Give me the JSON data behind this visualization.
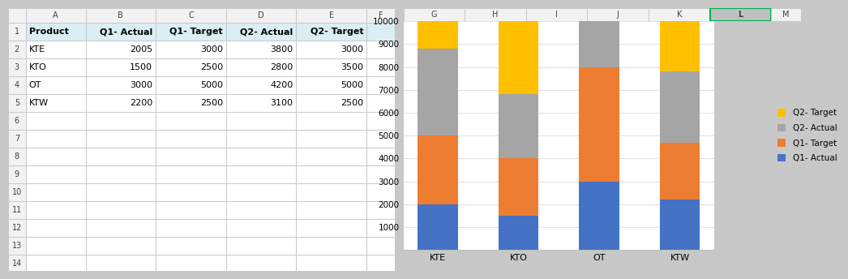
{
  "products": [
    "KTE",
    "KTO",
    "OT",
    "KTW"
  ],
  "q1_actual": [
    2005,
    1500,
    3000,
    2200
  ],
  "q1_target": [
    3000,
    2500,
    5000,
    2500
  ],
  "q2_actual": [
    3800,
    2800,
    4200,
    3100
  ],
  "q2_target": [
    3000,
    3500,
    5000,
    2500
  ],
  "colors": {
    "q1_actual": "#4472C4",
    "q1_target": "#ED7D31",
    "q2_actual": "#A5A5A5",
    "q2_target": "#FFC000"
  },
  "legend_labels": [
    "Q1- Actual",
    "Q1- Target",
    "Q2- Actual",
    "Q2- Target"
  ],
  "ylim": [
    0,
    10000
  ],
  "yticks": [
    0,
    1000,
    2000,
    3000,
    4000,
    5000,
    6000,
    7000,
    8000,
    9000,
    10000
  ],
  "table_headers": [
    "Product",
    "Q1- Actual",
    "Q1- Target",
    "Q2- Actual",
    "Q2- Target"
  ],
  "table_data": [
    [
      "KTE",
      "2005",
      "3000",
      "3800",
      "3000"
    ],
    [
      "KTO",
      "1500",
      "2500",
      "2800",
      "3500"
    ],
    [
      "OT",
      "3000",
      "5000",
      "4200",
      "5000"
    ],
    [
      "KTW",
      "2200",
      "2500",
      "3100",
      "2500"
    ]
  ],
  "header_bg": "#DAEEF3",
  "cell_border": "#BFBFBF",
  "row_header_bg": "#F2F2F2",
  "col_letters_all": [
    "A",
    "B",
    "C",
    "D",
    "E",
    "F",
    "G",
    "H",
    "I",
    "J",
    "K",
    "L",
    "M"
  ],
  "num_rows": 14,
  "chart_bg": "#FFFFFF",
  "fig_bg": "#C8C8C8",
  "grid_color": "#E0E0E0"
}
